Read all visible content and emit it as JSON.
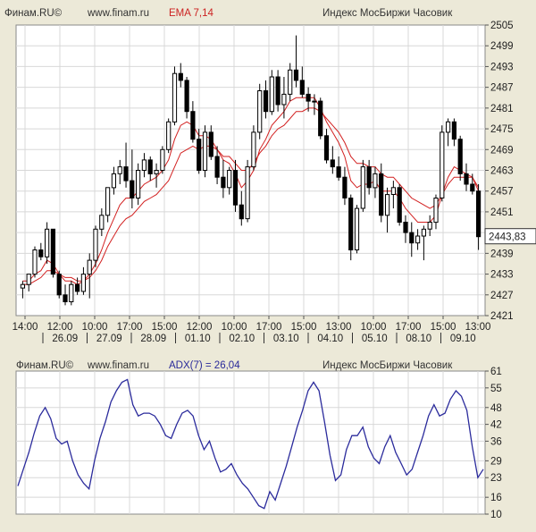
{
  "top": {
    "brand": "Финам.RU©",
    "site": "www.finam.ru",
    "indicator": "EMA 7,14",
    "instrument": "Индекс МосБиржи Часовик"
  },
  "bottom": {
    "brand": "Финам.RU©",
    "site": "www.finam.ru",
    "indicator": "ADX(7) = 26,04",
    "instrument": "Индекс МосБиржи Часовик"
  },
  "colors": {
    "background": "#ece9d8",
    "plot": "#ffffff",
    "grid": "#d8d8d8",
    "candle": "#000000",
    "ema": "#d22020",
    "adx": "#2b2b9c"
  },
  "chart_data": [
    {
      "type": "candlestick",
      "ylim": [
        2421,
        2505
      ],
      "y_ticks": [
        "2505",
        "2499",
        "2493",
        "2487",
        "2481",
        "2475",
        "2469",
        "2463",
        "2457",
        "2451",
        "2445",
        "2439",
        "2433",
        "2427",
        "2421"
      ],
      "last_price_label": "2443,83",
      "time_ticks": [
        "14:00",
        "12:00",
        "10:00",
        "17:00",
        "15:00",
        "12:00",
        "10:00",
        "17:00",
        "15:00",
        "13:00",
        "10:00",
        "17:00",
        "15:00",
        "13:00"
      ],
      "date_ticks": [
        "26.09",
        "27.09",
        "28.09",
        "01.10",
        "02.10",
        "03.10",
        "04.10",
        "05.10",
        "08.10",
        "09.10"
      ],
      "ohlc": [
        [
          2429,
          2431,
          2426,
          2430
        ],
        [
          2430,
          2433,
          2428,
          2433
        ],
        [
          2433,
          2441,
          2432,
          2440
        ],
        [
          2440,
          2442,
          2437,
          2438
        ],
        [
          2438,
          2448,
          2436,
          2446
        ],
        [
          2446,
          2446,
          2432,
          2433
        ],
        [
          2433,
          2434,
          2426,
          2427
        ],
        [
          2427,
          2430,
          2424,
          2425
        ],
        [
          2425,
          2431,
          2424,
          2430
        ],
        [
          2430,
          2432,
          2427,
          2428
        ],
        [
          2428,
          2435,
          2427,
          2433
        ],
        [
          2433,
          2439,
          2426,
          2437
        ],
        [
          2437,
          2447,
          2435,
          2446
        ],
        [
          2446,
          2452,
          2444,
          2450
        ],
        [
          2450,
          2458,
          2448,
          2458
        ],
        [
          2458,
          2464,
          2456,
          2462
        ],
        [
          2462,
          2466,
          2459,
          2464
        ],
        [
          2464,
          2471,
          2458,
          2460
        ],
        [
          2460,
          2469,
          2452,
          2455
        ],
        [
          2455,
          2465,
          2453,
          2463
        ],
        [
          2463,
          2468,
          2461,
          2466
        ],
        [
          2466,
          2467,
          2460,
          2462
        ],
        [
          2462,
          2465,
          2458,
          2463
        ],
        [
          2463,
          2470,
          2462,
          2469
        ],
        [
          2469,
          2478,
          2468,
          2477
        ],
        [
          2477,
          2493,
          2476,
          2491
        ],
        [
          2491,
          2494,
          2487,
          2489
        ],
        [
          2489,
          2490,
          2478,
          2480
        ],
        [
          2480,
          2483,
          2471,
          2472
        ],
        [
          2472,
          2475,
          2462,
          2463
        ],
        [
          2463,
          2476,
          2461,
          2474
        ],
        [
          2474,
          2476,
          2466,
          2467
        ],
        [
          2467,
          2470,
          2459,
          2461
        ],
        [
          2461,
          2466,
          2455,
          2458
        ],
        [
          2458,
          2464,
          2456,
          2463
        ],
        [
          2463,
          2466,
          2451,
          2453
        ],
        [
          2453,
          2457,
          2447,
          2449
        ],
        [
          2449,
          2466,
          2448,
          2464
        ],
        [
          2464,
          2476,
          2463,
          2474
        ],
        [
          2474,
          2488,
          2472,
          2486
        ],
        [
          2486,
          2489,
          2478,
          2480
        ],
        [
          2480,
          2492,
          2479,
          2490
        ],
        [
          2490,
          2492,
          2480,
          2482
        ],
        [
          2482,
          2490,
          2478,
          2485
        ],
        [
          2485,
          2494,
          2483,
          2492
        ],
        [
          2492,
          2502,
          2487,
          2489
        ],
        [
          2489,
          2493,
          2484,
          2485
        ],
        [
          2485,
          2487,
          2480,
          2483
        ],
        [
          2483,
          2485,
          2479,
          2483
        ],
        [
          2483,
          2484,
          2472,
          2473
        ],
        [
          2473,
          2475,
          2465,
          2466
        ],
        [
          2466,
          2470,
          2462,
          2464
        ],
        [
          2464,
          2467,
          2460,
          2461
        ],
        [
          2461,
          2464,
          2453,
          2455
        ],
        [
          2455,
          2456,
          2437,
          2440
        ],
        [
          2440,
          2453,
          2439,
          2452
        ],
        [
          2452,
          2466,
          2451,
          2464
        ],
        [
          2464,
          2466,
          2456,
          2458
        ],
        [
          2458,
          2464,
          2455,
          2462
        ],
        [
          2462,
          2465,
          2448,
          2450
        ],
        [
          2450,
          2458,
          2445,
          2456
        ],
        [
          2456,
          2460,
          2452,
          2458
        ],
        [
          2458,
          2459,
          2447,
          2448
        ],
        [
          2448,
          2450,
          2442,
          2445
        ],
        [
          2445,
          2448,
          2438,
          2442
        ],
        [
          2442,
          2446,
          2440,
          2444
        ],
        [
          2444,
          2447,
          2437,
          2446
        ],
        [
          2446,
          2450,
          2444,
          2448
        ],
        [
          2448,
          2456,
          2446,
          2455
        ],
        [
          2455,
          2476,
          2454,
          2474
        ],
        [
          2474,
          2478,
          2470,
          2477
        ],
        [
          2477,
          2478,
          2470,
          2472
        ],
        [
          2472,
          2473,
          2460,
          2462
        ],
        [
          2462,
          2465,
          2457,
          2459
        ],
        [
          2459,
          2462,
          2456,
          2457
        ],
        [
          2457,
          2459,
          2440,
          2443.83
        ]
      ],
      "ema_fast": [
        2431,
        2431,
        2433,
        2434,
        2437,
        2436,
        2433,
        2431,
        2431,
        2430,
        2431,
        2433,
        2436,
        2440,
        2445,
        2449,
        2453,
        2455,
        2455,
        2457,
        2459,
        2460,
        2461,
        2463,
        2466,
        2472,
        2476,
        2477,
        2476,
        2473,
        2473,
        2472,
        2469,
        2466,
        2465,
        2462,
        2458,
        2460,
        2463,
        2469,
        2472,
        2476,
        2478,
        2480,
        2483,
        2484,
        2484,
        2484,
        2484,
        2481,
        2477,
        2474,
        2471,
        2467,
        2460,
        2458,
        2459,
        2459,
        2460,
        2457,
        2457,
        2457,
        2455,
        2452,
        2450,
        2448,
        2448,
        2448,
        2450,
        2456,
        2461,
        2464,
        2463,
        2462,
        2461,
        2457
      ],
      "ema_slow": [
        2430,
        2430,
        2431,
        2432,
        2434,
        2434,
        2433,
        2432,
        2432,
        2431,
        2431,
        2432,
        2434,
        2437,
        2441,
        2444,
        2447,
        2449,
        2450,
        2452,
        2454,
        2455,
        2456,
        2458,
        2460,
        2464,
        2468,
        2469,
        2470,
        2469,
        2470,
        2470,
        2469,
        2467,
        2467,
        2465,
        2463,
        2463,
        2465,
        2468,
        2470,
        2473,
        2475,
        2476,
        2478,
        2480,
        2480,
        2481,
        2481,
        2480,
        2478,
        2476,
        2474,
        2471,
        2467,
        2465,
        2465,
        2464,
        2464,
        2462,
        2461,
        2461,
        2459,
        2457,
        2455,
        2454,
        2453,
        2452,
        2453,
        2456,
        2459,
        2461,
        2461,
        2461,
        2461,
        2458
      ]
    },
    {
      "type": "line",
      "ylim": [
        10,
        61
      ],
      "y_ticks": [
        "61",
        "55",
        "48",
        "42",
        "36",
        "29",
        "23",
        "16",
        "10"
      ],
      "series": [
        {
          "name": "ADX(7)",
          "values": [
            20,
            26,
            32,
            39,
            45,
            48,
            44,
            37,
            35,
            36,
            29,
            24,
            21,
            19,
            29,
            37,
            43,
            50,
            54,
            57,
            58,
            49,
            45,
            46,
            46,
            45,
            42,
            38,
            37,
            42,
            46,
            47,
            45,
            38,
            33,
            36,
            30,
            25,
            26,
            28,
            24,
            21,
            19,
            16,
            13,
            12,
            18,
            15,
            21,
            27,
            34,
            41,
            47,
            54,
            57,
            54,
            43,
            31,
            22,
            24,
            33,
            38,
            38,
            41,
            34,
            30,
            28,
            34,
            38,
            32,
            28,
            24,
            26,
            32,
            38,
            45,
            49,
            45,
            46,
            51,
            54,
            52,
            47,
            34,
            23,
            26
          ]
        }
      ]
    }
  ]
}
